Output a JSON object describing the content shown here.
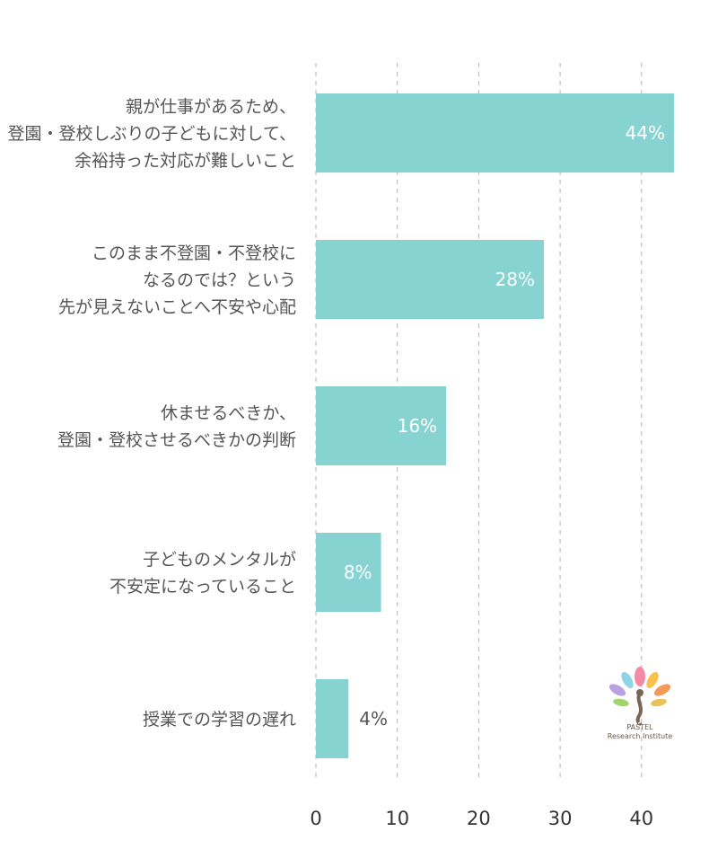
{
  "chart_data": {
    "type": "bar",
    "orientation": "horizontal",
    "categories": [
      [
        "親が仕事があるため、",
        "登園・登校しぶりの子どもに対して、",
        "余裕持った対応が難しいこと"
      ],
      [
        "このまま不登園・不登校に",
        "なるのでは？という",
        "先が見えないことへ不安や心配"
      ],
      [
        "休ませるべきか、",
        "登園・登校させるべきかの判断"
      ],
      [
        "子どものメンタルが",
        "不安定になっていること"
      ],
      [
        "授業での学習の遅れ"
      ]
    ],
    "values": [
      44,
      28,
      16,
      8,
      4
    ],
    "value_labels": [
      "44%",
      "28%",
      "16%",
      "8%",
      "4%"
    ],
    "xlim": [
      0,
      44
    ],
    "xticks": [
      0,
      10,
      20,
      30,
      40
    ],
    "grid": true,
    "colors": {
      "bar": "#86d3d2",
      "label_inside": "#ffffff",
      "label_outside": "#555555",
      "grid": "#b5b5b5"
    }
  },
  "logo": {
    "line1": "PASTEL",
    "line2": "Research Institute"
  }
}
